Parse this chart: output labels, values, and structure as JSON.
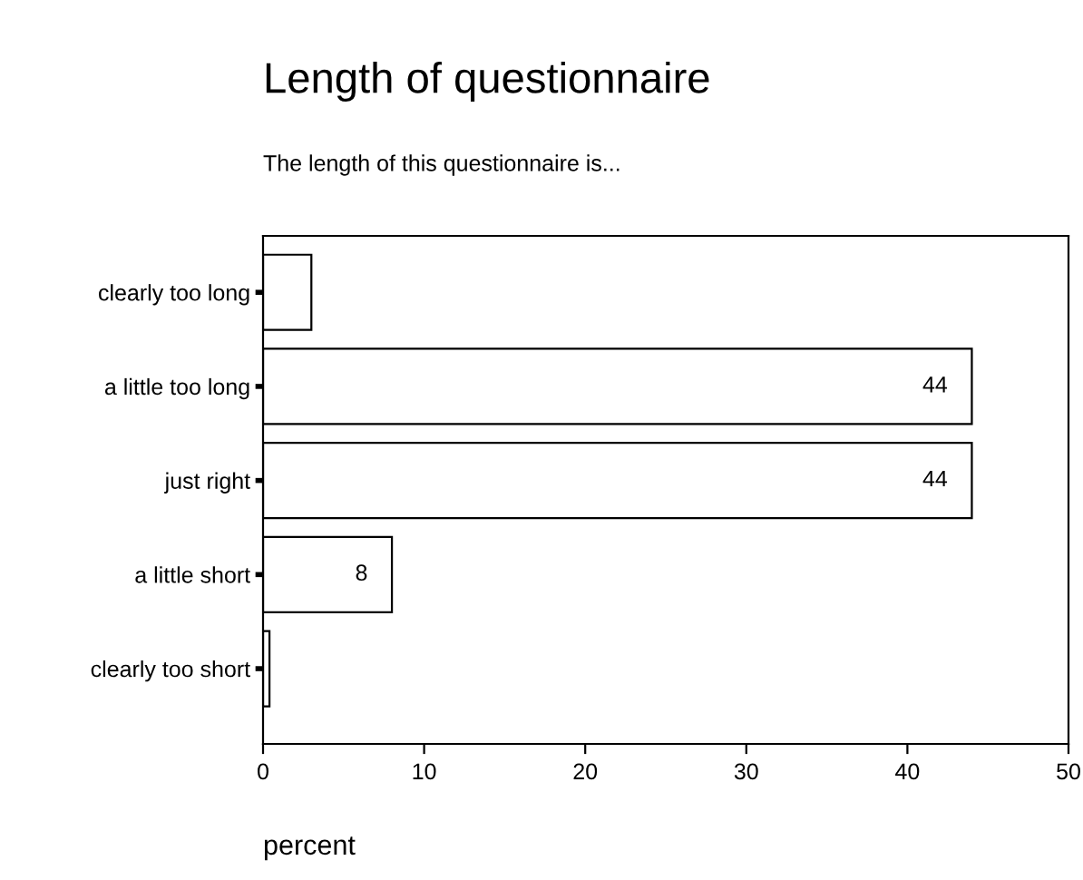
{
  "chart_data": {
    "type": "bar",
    "orientation": "horizontal",
    "title": "Length of questionnaire",
    "subtitle": "The length of this questionnaire is...",
    "xlabel": "percent",
    "categories": [
      "clearly too long",
      "a little too long",
      "just right",
      "a little short",
      "clearly too short"
    ],
    "values": [
      3,
      44,
      44,
      8,
      0.4
    ],
    "value_labels": [
      null,
      "44",
      "44",
      "8",
      null
    ],
    "color": "#ffffff",
    "xlim": [
      0,
      50
    ],
    "xticks": [
      0,
      10,
      20,
      30,
      40,
      50
    ],
    "grid": false,
    "legend": false
  }
}
